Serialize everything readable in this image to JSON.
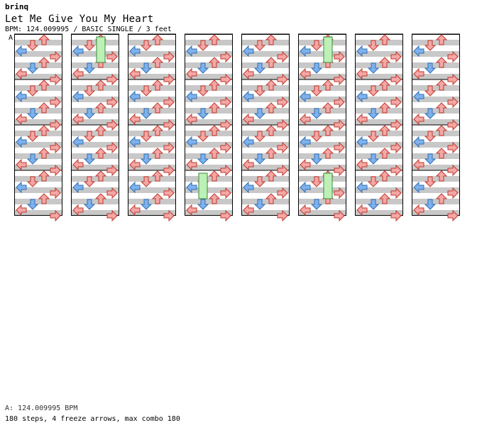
{
  "header": {
    "site": "brinq",
    "song_title": "Let Me Give You My Heart",
    "meta": "BPM: 124.009995 / BASIC SINGLE / 3 feet",
    "bpm_marker": "A"
  },
  "footer": {
    "bpm_line": "A: 124.009995 BPM",
    "stats": "180 steps, 4 freeze arrows, max combo 180"
  },
  "colors": {
    "quarter": "#f4a7a7",
    "eighth": "#7fb2ec",
    "sixteenth": "#ffb4ff",
    "freeze": "#bdf0b6",
    "stripe": "#c8c8c8"
  },
  "chart_data": {
    "type": "step-chart",
    "columns": 8,
    "measures_per_column": 4,
    "lanes": [
      "left",
      "down",
      "up",
      "right"
    ],
    "arrow_types": [
      "quarter",
      "eighth",
      "sixteenth"
    ],
    "notes": [
      [
        [
          1,
          0.0,
          2,
          "q"
        ],
        [
          1,
          0.5,
          1,
          "q"
        ],
        [
          1,
          1.0,
          3,
          "q"
        ],
        [
          1,
          1.5,
          2,
          "q"
        ],
        [
          1,
          2.0,
          1,
          "q"
        ],
        [
          1,
          2.5,
          0,
          "q"
        ],
        [
          1,
          3.0,
          3,
          "q"
        ],
        [
          1,
          3.5,
          2,
          "q"
        ]
      ],
      [
        [
          3,
          0.0,
          2,
          "q"
        ],
        [
          3,
          0.5,
          1,
          "q"
        ],
        [
          3,
          1.0,
          3,
          "q"
        ],
        [
          3,
          1.5,
          2,
          "q"
        ],
        [
          3,
          2.0,
          1,
          "q"
        ],
        [
          3,
          2.5,
          3,
          "q"
        ],
        [
          3,
          3.0,
          2,
          "q"
        ],
        [
          3,
          3.5,
          0,
          "q"
        ]
      ]
    ]
  }
}
